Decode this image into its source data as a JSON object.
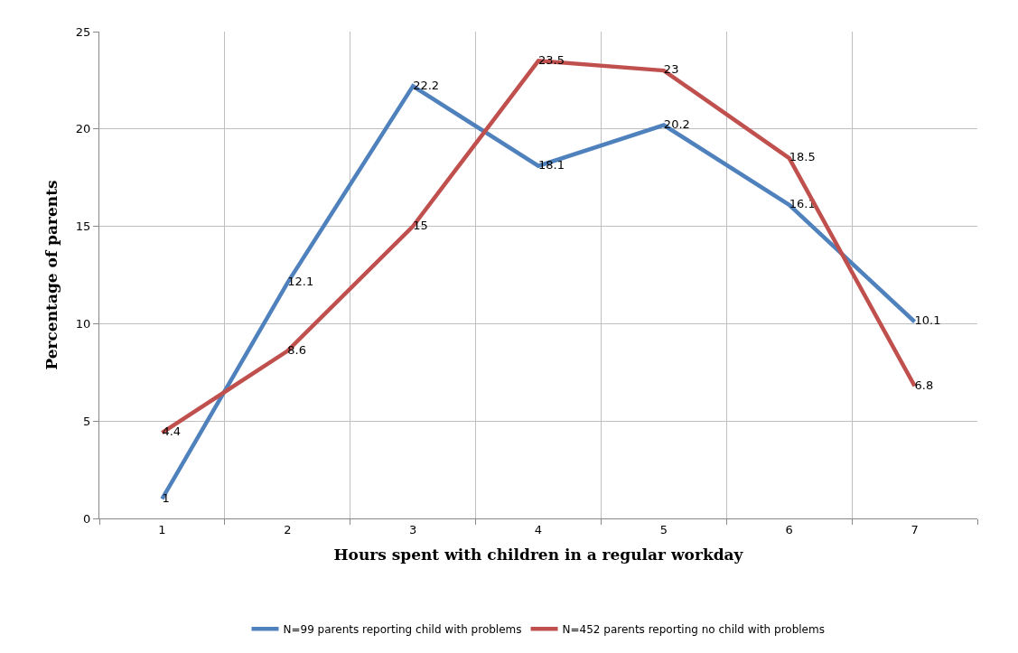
{
  "chart_data": {
    "type": "line",
    "xlabel": "Hours spent with children in a regular workday",
    "ylabel": "Percentage of parents",
    "categories": [
      "1",
      "2",
      "3",
      "4",
      "5",
      "6",
      "7"
    ],
    "series": [
      {
        "name": "N=99 parents reporting child with problems",
        "color": "#4f81bd",
        "values": [
          1,
          12.1,
          22.2,
          18.1,
          20.2,
          16.1,
          10.1
        ]
      },
      {
        "name": "N=452 parents reporting no child with problems",
        "color": "#c0504d",
        "values": [
          4.4,
          8.6,
          15,
          23.5,
          23,
          18.5,
          6.8
        ]
      }
    ],
    "ylim": [
      0,
      25
    ],
    "yticks": [
      0,
      5,
      10,
      15,
      20,
      25
    ],
    "grid": true,
    "legend": "bottom",
    "data_labels": true
  }
}
